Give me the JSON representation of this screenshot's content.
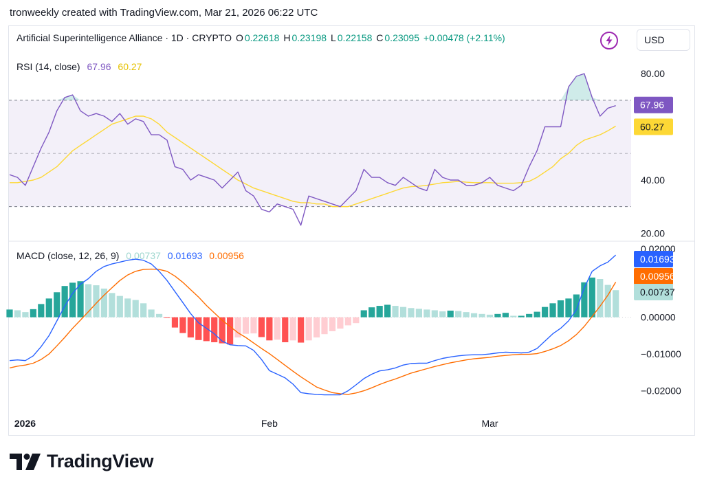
{
  "caption": "tronweekly created with TradingView.com, Mar 21, 2026 06:22 UTC",
  "header": {
    "symbol": "Artificial Superintelligence Alliance · 1D · CRYPTO",
    "o_label": "O",
    "o_value": "0.22618",
    "h_label": "H",
    "h_value": "0.23198",
    "l_label": "L",
    "l_value": "0.22158",
    "c_label": "C",
    "c_value": "0.23095",
    "change": "+0.00478 (+2.11%)",
    "currency": "USD",
    "icon": "lightning-bolt-icon"
  },
  "rsi_legend": {
    "label": "RSI (14, close)",
    "rsi": "67.96",
    "ma": "60.27"
  },
  "macd_legend": {
    "label": "MACD (close, 12, 26, 9)",
    "hist": "0.00737",
    "macd": "0.01693",
    "signal": "0.00956"
  },
  "brand": "TradingView",
  "colors": {
    "rsi": "#7e57c2",
    "rsi_ma": "#fdd835",
    "macd": "#2962ff",
    "signal": "#ff6d00",
    "hist_up_strong": "#26a69a",
    "hist_up_weak": "#b2dfdb",
    "hist_down_strong": "#ff5252",
    "hist_down_weak": "#ffcdd2"
  },
  "chart_data": [
    {
      "type": "line",
      "title": "RSI (14, close)",
      "ylim": [
        17,
        87
      ],
      "yticks": [
        "80.00",
        "40.00",
        "20.00"
      ],
      "ytick_values": [
        80,
        40,
        20
      ],
      "band": [
        30,
        70
      ],
      "midline": 50,
      "x_ticks": [
        {
          "label": "2026",
          "index": 2
        },
        {
          "label": "Feb",
          "index": 33
        },
        {
          "label": "Mar",
          "index": 61
        }
      ],
      "last_labels": {
        "rsi": "67.96",
        "ma": "60.27"
      },
      "series": [
        {
          "key": "rsi",
          "values": [
            42,
            41,
            38,
            45,
            52,
            58,
            66,
            71,
            72,
            66,
            64,
            65,
            64,
            62,
            65,
            61,
            63,
            62,
            57,
            57,
            55,
            45,
            44,
            40,
            42,
            41,
            40,
            37,
            40,
            43,
            36,
            34,
            29,
            28,
            31,
            30,
            29,
            23,
            34,
            33,
            32,
            31,
            30,
            33,
            36,
            44,
            41,
            41,
            39,
            38,
            41,
            39,
            37,
            36,
            44,
            41,
            40,
            40,
            38,
            38,
            39,
            41,
            38,
            37,
            36,
            38,
            45,
            51,
            60,
            60,
            60,
            75,
            79,
            80,
            71,
            64,
            67,
            67.96
          ]
        },
        {
          "key": "ma",
          "values": [
            39,
            39,
            39.5,
            40,
            41,
            43,
            45,
            48,
            51,
            53,
            55,
            57,
            59,
            61,
            62,
            63,
            64,
            64,
            63,
            61,
            58,
            56,
            54,
            52,
            50,
            48,
            46,
            44,
            42,
            40,
            38.5,
            37,
            36,
            35,
            34,
            33,
            32,
            31.5,
            31.5,
            31,
            31,
            30,
            30,
            30,
            31,
            32,
            33,
            34,
            35,
            36,
            37,
            37.5,
            37.7,
            38,
            38.5,
            39,
            39.2,
            39.5,
            39.2,
            39,
            39,
            39,
            38.8,
            38.8,
            38.8,
            39,
            39.5,
            41,
            43,
            45,
            48,
            50,
            53,
            55,
            56,
            57,
            58.5,
            60.27
          ]
        }
      ]
    },
    {
      "type": "line",
      "title": "MACD (close, 12, 26, 9)",
      "ylim": [
        -0.0255,
        0.0205
      ],
      "yticks": [
        "0.02000",
        "0.00000",
        "−0.01000",
        "−0.02000"
      ],
      "ytick_values": [
        0.02,
        0,
        -0.01,
        -0.02
      ],
      "last_labels": {
        "macd": "0.01693",
        "signal": "0.00956",
        "hist": "0.00737"
      },
      "series": [
        {
          "key": "macd",
          "values": [
            -0.0118,
            -0.0116,
            -0.0118,
            -0.0105,
            -0.008,
            -0.005,
            -0.001,
            0.003,
            0.0065,
            0.009,
            0.0105,
            0.0125,
            0.0138,
            0.0145,
            0.015,
            0.0155,
            0.0158,
            0.0155,
            0.0145,
            0.0125,
            0.01,
            0.007,
            0.004,
            0.001,
            -0.0015,
            -0.003,
            -0.0045,
            -0.0065,
            -0.0075,
            -0.0077,
            -0.0078,
            -0.009,
            -0.0115,
            -0.0145,
            -0.0155,
            -0.0165,
            -0.0182,
            -0.0205,
            -0.0208,
            -0.021,
            -0.0211,
            -0.0211,
            -0.0211,
            -0.02,
            -0.0184,
            -0.0167,
            -0.0155,
            -0.0146,
            -0.0143,
            -0.0138,
            -0.013,
            -0.0126,
            -0.0125,
            -0.0125,
            -0.0118,
            -0.0112,
            -0.0108,
            -0.0105,
            -0.0103,
            -0.0102,
            -0.0102,
            -0.01,
            -0.0097,
            -0.0095,
            -0.0096,
            -0.0097,
            -0.0095,
            -0.0085,
            -0.0065,
            -0.0045,
            -0.003,
            -0.001,
            0.002,
            0.008,
            0.0125,
            0.014,
            0.015,
            0.01693
          ]
        },
        {
          "key": "signal",
          "values": [
            -0.0138,
            -0.0133,
            -0.013,
            -0.0125,
            -0.0115,
            -0.01,
            -0.0078,
            -0.0055,
            -0.003,
            -0.0008,
            0.0015,
            0.0038,
            0.006,
            0.008,
            0.01,
            0.0115,
            0.0125,
            0.013,
            0.0131,
            0.013,
            0.0125,
            0.0112,
            0.0095,
            0.0075,
            0.0055,
            0.0032,
            0.0012,
            -0.0008,
            -0.0025,
            -0.0042,
            -0.0055,
            -0.007,
            -0.0085,
            -0.0099,
            -0.0115,
            -0.0131,
            -0.0147,
            -0.0162,
            -0.0176,
            -0.019,
            -0.0198,
            -0.0205,
            -0.0208,
            -0.021,
            -0.0206,
            -0.02,
            -0.0192,
            -0.0183,
            -0.0175,
            -0.0168,
            -0.016,
            -0.0152,
            -0.0146,
            -0.014,
            -0.0134,
            -0.0129,
            -0.0124,
            -0.012,
            -0.0116,
            -0.0113,
            -0.0111,
            -0.0109,
            -0.0106,
            -0.0104,
            -0.0102,
            -0.0101,
            -0.0101,
            -0.0099,
            -0.0093,
            -0.0086,
            -0.0077,
            -0.0064,
            -0.0047,
            -0.0025,
            0.0002,
            0.003,
            0.006,
            0.00956
          ]
        },
        {
          "key": "hist",
          "values": [
            0.0021,
            0.0019,
            0.0014,
            0.0022,
            0.0036,
            0.0051,
            0.0068,
            0.0085,
            0.0094,
            0.0098,
            0.009,
            0.0087,
            0.0078,
            0.0066,
            0.0058,
            0.0051,
            0.0047,
            0.0038,
            0.0021,
            0.0009,
            -0.0001,
            -0.0028,
            -0.0043,
            -0.0055,
            -0.0062,
            -0.0065,
            -0.0068,
            -0.0071,
            -0.0074,
            -0.0055,
            -0.0045,
            -0.0044,
            -0.0054,
            -0.0063,
            -0.0061,
            -0.0068,
            -0.0063,
            -0.0069,
            -0.0063,
            -0.0055,
            -0.0046,
            -0.0038,
            -0.0031,
            -0.0022,
            -0.0016,
            0.0019,
            0.0027,
            0.0031,
            0.0034,
            0.0031,
            0.0028,
            0.0025,
            0.0023,
            0.0021,
            0.0019,
            0.0016,
            0.0018,
            0.0017,
            0.0014,
            0.0011,
            0.0009,
            0.0007,
            0.0009,
            0.0012,
            0.0004,
            0.0004,
            0.0009,
            0.0015,
            0.0028,
            0.0038,
            0.0046,
            0.0051,
            0.0062,
            0.0095,
            0.0108,
            0.0104,
            0.0088,
            0.00737
          ]
        }
      ]
    }
  ]
}
